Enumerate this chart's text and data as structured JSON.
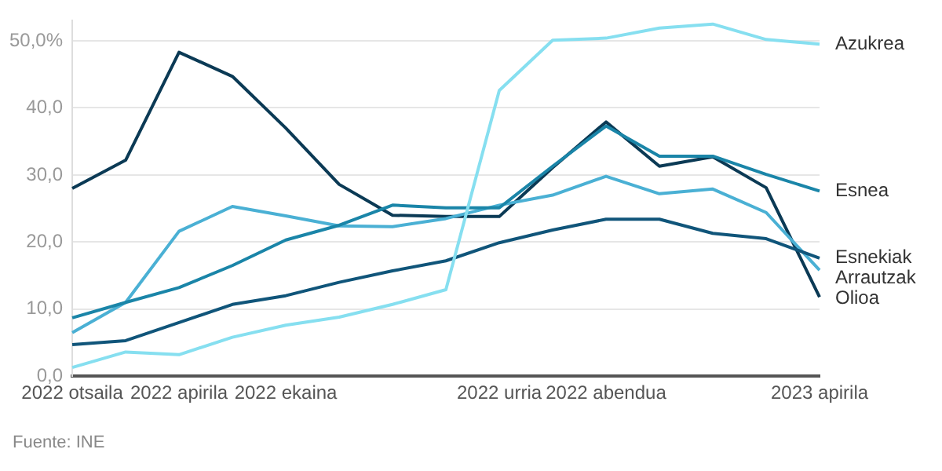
{
  "chart_data": {
    "type": "line",
    "categories": [
      "2022 otsaila",
      null,
      "2022 apirila",
      null,
      "2022 ekaina",
      null,
      null,
      null,
      "2022 urria",
      null,
      "2022 abendua",
      null,
      null,
      null,
      "2023 apirila"
    ],
    "series": [
      {
        "name": "Azukrea",
        "color": "#86dff0",
        "values": [
          1.3,
          3.6,
          3.2,
          5.8,
          7.6,
          8.8,
          10.7,
          12.9,
          42.6,
          50.1,
          50.4,
          51.9,
          52.5,
          50.2,
          49.5
        ]
      },
      {
        "name": "Esnea",
        "color": "#1a85a8",
        "values": [
          8.7,
          11.0,
          13.2,
          16.5,
          20.3,
          22.5,
          25.5,
          25.1,
          25.1,
          31.3,
          37.3,
          32.8,
          32.8,
          30.1,
          27.6
        ]
      },
      {
        "name": "Esnekiak",
        "color": "#10557a",
        "values": [
          4.7,
          5.3,
          8.0,
          10.7,
          12.0,
          14.0,
          15.7,
          17.2,
          19.9,
          21.8,
          23.4,
          23.4,
          21.3,
          20.5,
          17.6
        ]
      },
      {
        "name": "Arrautzak",
        "color": "#4ab0d4",
        "values": [
          6.5,
          11.0,
          21.6,
          25.3,
          23.9,
          22.4,
          22.3,
          23.5,
          25.5,
          27.0,
          29.8,
          27.2,
          27.9,
          24.4,
          15.8
        ]
      },
      {
        "name": "Olioa",
        "color": "#0b3a55",
        "values": [
          28.0,
          32.2,
          48.3,
          44.7,
          37.0,
          28.6,
          24.0,
          23.8,
          23.8,
          31.1,
          37.9,
          31.3,
          32.7,
          28.1,
          11.8
        ]
      }
    ],
    "ylim": [
      0,
      53
    ],
    "yticks": [
      {
        "value": 0,
        "label": "0,0"
      },
      {
        "value": 10,
        "label": "10,0"
      },
      {
        "value": 20,
        "label": "20,0"
      },
      {
        "value": 30,
        "label": "30,0"
      },
      {
        "value": 40,
        "label": "40,0"
      },
      {
        "value": 50,
        "label": "50,0%"
      }
    ],
    "grid": "y",
    "legend": false,
    "marker": "none",
    "line_style": "solid",
    "annotations": [
      "Fuente: INE"
    ]
  }
}
